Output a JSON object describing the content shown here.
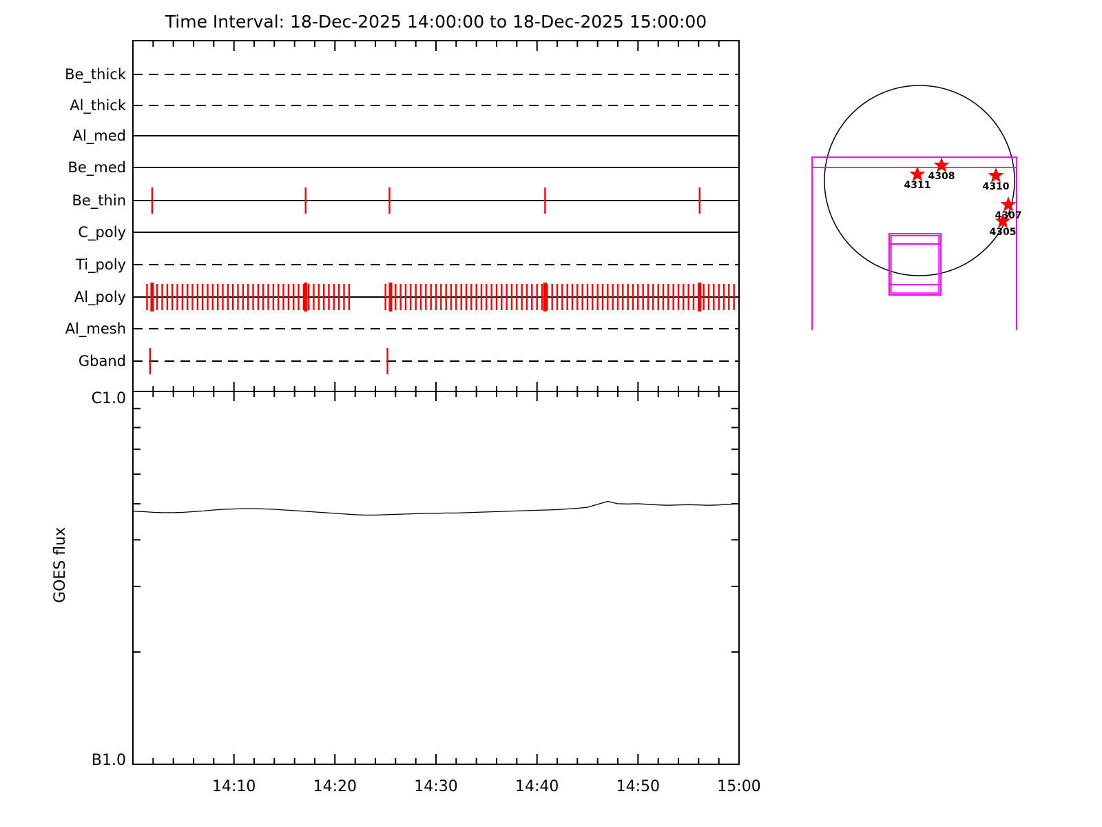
{
  "title": "Time Interval: 18-Dec-2025 14:00:00 to 18-Dec-2025 15:00:00",
  "colors": {
    "background": "#FFFFFF",
    "line_black": "#000000",
    "exposure_tick_red": "#FF0000",
    "fov_magenta": "#FF00FF"
  },
  "chart_data": [
    {
      "type": "event-timeline",
      "title": "Filter usage timeline",
      "x_axis": {
        "start_time": "14:00:00",
        "end_time": "15:00:00",
        "start_minute": 0,
        "end_minute": 60,
        "minor_tick_min": 2,
        "major_tick_min": 10
      },
      "tick_color": "#FF0000",
      "rows": [
        {
          "label": "Be_thick",
          "line_style": "dashed",
          "ticks": []
        },
        {
          "label": "Al_thick",
          "line_style": "dashed",
          "ticks": []
        },
        {
          "label": "Al_med",
          "line_style": "solid",
          "ticks": []
        },
        {
          "label": "Be_med",
          "line_style": "solid",
          "ticks": []
        },
        {
          "label": "Be_thin",
          "line_style": "solid",
          "ticks": [
            1.9,
            17.1,
            25.4,
            40.8,
            56.1
          ]
        },
        {
          "label": "C_poly",
          "line_style": "solid",
          "ticks": []
        },
        {
          "label": "Ti_poly",
          "line_style": "dashed",
          "ticks": []
        },
        {
          "label": "Al_poly",
          "line_style": "solid",
          "ticks": [
            1.4,
            1.9,
            2.4,
            2.9,
            3.4,
            3.9,
            4.4,
            4.9,
            5.4,
            5.9,
            6.4,
            6.9,
            7.4,
            7.9,
            8.4,
            8.9,
            9.4,
            9.9,
            10.4,
            10.9,
            11.4,
            11.9,
            12.4,
            12.9,
            13.4,
            13.9,
            14.4,
            14.9,
            15.4,
            15.9,
            16.4,
            16.9,
            17.4,
            17.9,
            18.4,
            18.9,
            19.4,
            19.9,
            20.4,
            20.9,
            21.4,
            25.0,
            25.5,
            26.0,
            26.5,
            27.0,
            27.5,
            28.0,
            28.5,
            29.0,
            29.5,
            30.0,
            30.5,
            31.0,
            31.5,
            32.0,
            32.5,
            33.0,
            33.5,
            34.0,
            34.5,
            35.0,
            35.5,
            36.0,
            36.5,
            37.0,
            37.5,
            38.0,
            38.5,
            39.0,
            39.5,
            40.0,
            40.5,
            41.0,
            41.5,
            42.0,
            42.5,
            43.0,
            43.5,
            44.0,
            44.5,
            45.0,
            45.5,
            46.0,
            46.5,
            47.0,
            47.5,
            48.0,
            48.5,
            49.0,
            49.5,
            50.0,
            50.5,
            51.0,
            51.5,
            52.0,
            52.5,
            53.0,
            53.5,
            54.0,
            54.5,
            55.0,
            55.5,
            56.0,
            56.5,
            57.0,
            57.5,
            58.0,
            58.5,
            59.0,
            59.5
          ],
          "bold_ticks": [
            1.9,
            17.1,
            25.5,
            40.8,
            56.1
          ]
        },
        {
          "label": "Al_mesh",
          "line_style": "dashed",
          "ticks": []
        },
        {
          "label": "Gband",
          "line_style": "dashed",
          "ticks": [
            1.7,
            25.2
          ]
        }
      ]
    },
    {
      "type": "line",
      "ylabel": "GOES flux",
      "y_top_label": "C1.0",
      "y_bottom_label": "B1.0",
      "y_scale": "log",
      "y_top_flux_wm2": 1e-06,
      "y_bottom_flux_wm2": 1e-07,
      "x_tick_labels": [
        "14:10",
        "14:20",
        "14:30",
        "14:40",
        "14:50",
        "15:00"
      ],
      "x_tick_minutes": [
        10,
        20,
        30,
        40,
        50,
        60
      ],
      "x_minutes": [
        0,
        1,
        2,
        3,
        4,
        5,
        6,
        7,
        8,
        9,
        10,
        11,
        12,
        13,
        14,
        15,
        16,
        17,
        18,
        19,
        20,
        21,
        22,
        23,
        24,
        25,
        26,
        27,
        28,
        29,
        30,
        31,
        32,
        33,
        34,
        35,
        36,
        37,
        38,
        39,
        40,
        41,
        42,
        43,
        44,
        45,
        46,
        47,
        48,
        49,
        50,
        51,
        52,
        53,
        54,
        55,
        56,
        57,
        58,
        59,
        60
      ],
      "flux_b_units": [
        4.77,
        4.76,
        4.74,
        4.73,
        4.73,
        4.74,
        4.76,
        4.78,
        4.81,
        4.83,
        4.84,
        4.85,
        4.85,
        4.84,
        4.83,
        4.81,
        4.79,
        4.77,
        4.75,
        4.73,
        4.71,
        4.69,
        4.67,
        4.66,
        4.66,
        4.67,
        4.68,
        4.69,
        4.7,
        4.71,
        4.71,
        4.72,
        4.72,
        4.73,
        4.74,
        4.75,
        4.76,
        4.77,
        4.78,
        4.79,
        4.8,
        4.81,
        4.82,
        4.84,
        4.86,
        4.89,
        4.98,
        5.07,
        5.0,
        4.99,
        5.0,
        4.98,
        4.96,
        4.95,
        4.96,
        4.97,
        4.96,
        4.95,
        4.96,
        4.98,
        5.0
      ]
    },
    {
      "type": "sun_map",
      "disk_color": "#000000",
      "marker_color": "#FF0000",
      "fov_color": "#FF00FF",
      "active_regions": [
        {
          "noaa": "4311",
          "x_r": -0.022,
          "y_r": -0.065
        },
        {
          "noaa": "4308",
          "x_r": 0.232,
          "y_r": -0.159
        },
        {
          "noaa": "4310",
          "x_r": 0.804,
          "y_r": -0.051
        },
        {
          "noaa": "4307",
          "x_r": 0.935,
          "y_r": 0.254
        },
        {
          "noaa": "4305",
          "x_r": 0.877,
          "y_r": 0.428
        }
      ],
      "fov_boxes": {
        "strip": {
          "x1_r": -1.13,
          "x2_r": 1.022,
          "y1_r": -0.246,
          "y2_r": -0.138,
          "side_bottom_y_r": 1.572
        },
        "target_box": {
          "x1_r": -0.319,
          "x2_r": 0.225,
          "y1_r": 0.558,
          "y2_r": 1.203,
          "inner_inset_r": 0.02,
          "hline_top_y_r": 0.667,
          "hline_bottom_y_r": 1.094
        }
      }
    }
  ]
}
